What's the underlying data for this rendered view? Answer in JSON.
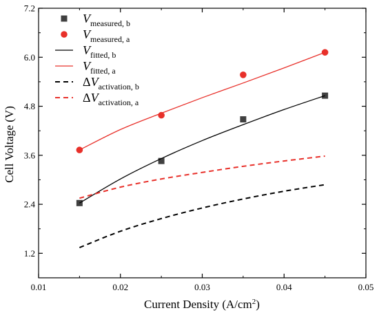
{
  "chart_data": {
    "type": "line",
    "xlabel": "Current Density (A/cm",
    "xlabel_sup": "2",
    "xlabel_end": ")",
    "ylabel": "Cell Voltage (V)",
    "xlim": [
      0.01,
      0.05
    ],
    "ylim": [
      0.6,
      7.2
    ],
    "x_ticks": [
      "0.01",
      "0.02",
      "0.03",
      "0.04",
      "0.05"
    ],
    "x_tick_values": [
      0.01,
      0.02,
      0.03,
      0.04,
      0.05
    ],
    "y_ticks": [
      "1.2",
      "2.4",
      "3.6",
      "4.8",
      "6.0",
      "7.2"
    ],
    "y_tick_values": [
      1.2,
      2.4,
      3.6,
      4.8,
      6.0,
      7.2
    ],
    "grid": false,
    "legend_position": "top-left",
    "series": [
      {
        "name_main": "V",
        "name_sub": "measured, b",
        "name_prefix": "",
        "kind": "marker",
        "marker": "square",
        "color": "#404040",
        "x": [
          0.015,
          0.025,
          0.035,
          0.045
        ],
        "y": [
          2.43,
          3.46,
          4.48,
          5.06
        ]
      },
      {
        "name_main": "V",
        "name_sub": "measured, a",
        "name_prefix": "",
        "kind": "marker",
        "marker": "circle",
        "color": "#e8302a",
        "x": [
          0.015,
          0.025,
          0.035,
          0.045
        ],
        "y": [
          3.73,
          4.58,
          5.57,
          6.12
        ]
      },
      {
        "name_main": "V",
        "name_sub": "fitted, b",
        "name_prefix": "",
        "kind": "line",
        "dash": "solid",
        "color": "#000000",
        "x": [
          0.015,
          0.02,
          0.025,
          0.03,
          0.035,
          0.04,
          0.045
        ],
        "y": [
          2.43,
          3.02,
          3.52,
          3.96,
          4.35,
          4.72,
          5.06
        ]
      },
      {
        "name_main": "V",
        "name_sub": "fitted, a",
        "name_prefix": "",
        "kind": "line",
        "dash": "solid",
        "color": "#e8302a",
        "x": [
          0.015,
          0.02,
          0.025,
          0.03,
          0.035,
          0.04,
          0.045
        ],
        "y": [
          3.73,
          4.23,
          4.63,
          5.01,
          5.37,
          5.74,
          6.12
        ]
      },
      {
        "name_main": "V",
        "name_sub": "activation, b",
        "name_prefix": "Δ",
        "kind": "line",
        "dash": "dashed",
        "color": "#000000",
        "x": [
          0.015,
          0.02,
          0.025,
          0.03,
          0.035,
          0.04,
          0.045
        ],
        "y": [
          1.34,
          1.74,
          2.05,
          2.31,
          2.53,
          2.72,
          2.88
        ]
      },
      {
        "name_main": "V",
        "name_sub": "activation, a",
        "name_prefix": "Δ",
        "kind": "line",
        "dash": "dashed",
        "color": "#e8302a",
        "x": [
          0.015,
          0.02,
          0.025,
          0.03,
          0.035,
          0.04,
          0.045
        ],
        "y": [
          2.55,
          2.82,
          3.02,
          3.18,
          3.33,
          3.46,
          3.58
        ]
      }
    ]
  }
}
